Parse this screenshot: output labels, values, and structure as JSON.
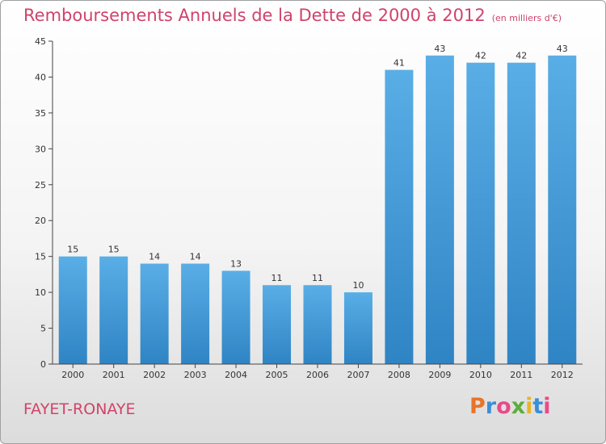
{
  "header": {
    "title": "Remboursements Annuels de la Dette de 2000 à 2012",
    "unit": "(en milliers d'€)"
  },
  "footer": {
    "location": "FAYET-RONAYE",
    "logo_text": "Proxiti",
    "logo_colors": [
      "#e8742a",
      "#3a8fd6",
      "#e84a8a",
      "#5cae3a",
      "#e8b52a",
      "#3a8fd6",
      "#e84a8a"
    ]
  },
  "colors": {
    "bar_light": "#5aaee6",
    "bar_dark": "#2f84c4",
    "accent": "#d0436a",
    "axis": "#444444",
    "grid": "#d8d8d8"
  },
  "chart_data": {
    "type": "bar",
    "title": "Remboursements Annuels de la Dette de 2000 à 2012",
    "xlabel": "",
    "ylabel": "",
    "categories": [
      "2000",
      "2001",
      "2002",
      "2003",
      "2004",
      "2005",
      "2006",
      "2007",
      "2008",
      "2009",
      "2010",
      "2011",
      "2012"
    ],
    "values": [
      15,
      15,
      14,
      14,
      13,
      11,
      11,
      10,
      41,
      43,
      42,
      42,
      43
    ],
    "ylim": [
      0,
      45
    ],
    "yticks": [
      0,
      5,
      10,
      15,
      20,
      25,
      30,
      35,
      40,
      45
    ],
    "grid": false,
    "data_labels": true
  }
}
